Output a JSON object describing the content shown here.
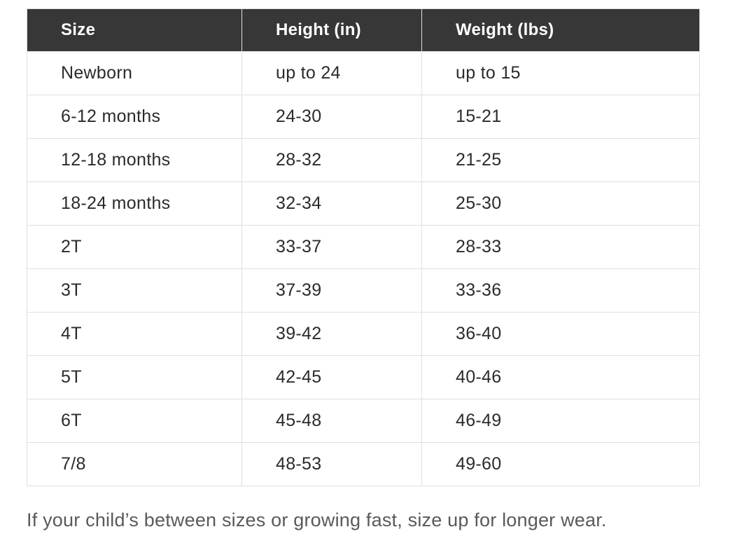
{
  "colors": {
    "page_bg": "#ffffff",
    "header_bg": "#373737",
    "header_text": "#ffffff",
    "body_text": "#2b2b2b",
    "border": "#e0e0e0",
    "note_text": "#5a5a5a"
  },
  "table": {
    "columns": [
      "Size",
      "Height (in)",
      "Weight (lbs)"
    ],
    "rows": [
      {
        "size": "Newborn",
        "height": "up to 24",
        "weight": "up to 15"
      },
      {
        "size": "6-12 months",
        "height": "24-30",
        "weight": "15-21"
      },
      {
        "size": "12-18 months",
        "height": "28-32",
        "weight": "21-25"
      },
      {
        "size": "18-24 months",
        "height": "32-34",
        "weight": "25-30"
      },
      {
        "size": "2T",
        "height": "33-37",
        "weight": "28-33"
      },
      {
        "size": "3T",
        "height": "37-39",
        "weight": "33-36"
      },
      {
        "size": "4T",
        "height": "39-42",
        "weight": "36-40"
      },
      {
        "size": "5T",
        "height": "42-45",
        "weight": "40-46"
      },
      {
        "size": "6T",
        "height": "45-48",
        "weight": "46-49"
      },
      {
        "size": "7/8",
        "height": "48-53",
        "weight": "49-60"
      }
    ]
  },
  "note": "If your child’s between sizes or growing fast, size up for longer wear.",
  "chart_data": {
    "type": "table",
    "title": "",
    "columns": [
      "Size",
      "Height (in)",
      "Weight (lbs)"
    ],
    "rows": [
      [
        "Newborn",
        "up to 24",
        "up to 15"
      ],
      [
        "6-12 months",
        "24-30",
        "15-21"
      ],
      [
        "12-18 months",
        "28-32",
        "21-25"
      ],
      [
        "18-24 months",
        "32-34",
        "25-30"
      ],
      [
        "2T",
        "33-37",
        "28-33"
      ],
      [
        "3T",
        "37-39",
        "33-36"
      ],
      [
        "4T",
        "39-42",
        "36-40"
      ],
      [
        "5T",
        "42-45",
        "40-46"
      ],
      [
        "6T",
        "45-48",
        "46-49"
      ],
      [
        "7/8",
        "48-53",
        "49-60"
      ]
    ],
    "footnote": "If your child’s between sizes or growing fast, size up for longer wear."
  }
}
